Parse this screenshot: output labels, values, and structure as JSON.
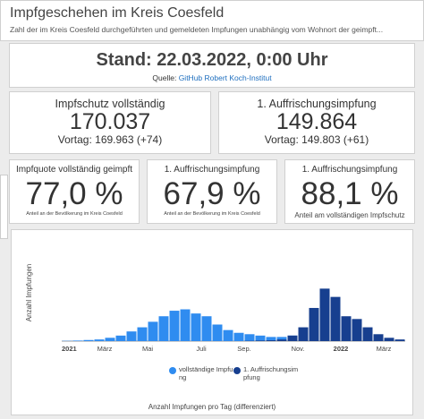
{
  "header": {
    "title": "Impfgeschehen im Kreis Coesfeld",
    "subtitle": "Zahl der im Kreis Coesfeld durchgeführten und gemeldeten Impfungen unabhängig vom Wohnort der geimpft..."
  },
  "stand": {
    "text": "Stand: 22.03.2022, 0:00 Uhr",
    "source_label": "Quelle:",
    "source_link": "GitHub Robert Koch-Institut"
  },
  "cards": [
    {
      "label": "Impfschutz vollständig",
      "value": "170.037",
      "previous": "Vortag: 169.963 (+74)"
    },
    {
      "label": "1. Auffrischungsimpfung",
      "value": "149.864",
      "previous": "Vortag: 149.803 (+61)"
    }
  ],
  "quotas": [
    {
      "label": "Impfquote vollständig geimpft",
      "value": "77,0 %",
      "note": "Anteil an der Bevölkerung im Kreis Coesfeld"
    },
    {
      "label": "1. Auffrischungsimpfung",
      "value": "67,9 %",
      "note": "Anteil an der Bevölkerung im Kreis Coesfeld"
    },
    {
      "label": "1. Auffrischungsimpfung",
      "value": "88,1 %",
      "note": "Anteil am vollständigen Impfschutz"
    }
  ],
  "chart_data": {
    "type": "bar",
    "y_label": "Anzahl Impfungen",
    "caption": "Anzahl Impfungen pro Tag (differenziert)",
    "ylim": [
      0,
      3500
    ],
    "categories": [
      "2021",
      null,
      null,
      null,
      "März",
      null,
      null,
      null,
      "Mai",
      null,
      null,
      null,
      null,
      "Juli",
      null,
      null,
      null,
      "Sep.",
      null,
      null,
      null,
      null,
      "Nov.",
      null,
      null,
      null,
      "2022",
      null,
      null,
      null,
      "März",
      null
    ],
    "series": [
      {
        "name": "vollständige Impfung",
        "color": "#2f8cf0",
        "values": [
          10,
          20,
          40,
          60,
          120,
          200,
          350,
          500,
          700,
          900,
          1100,
          1150,
          1000,
          900,
          600,
          400,
          300,
          250,
          200,
          150,
          150,
          200,
          300,
          350,
          250,
          150,
          80,
          60,
          40,
          30,
          20,
          20
        ]
      },
      {
        "name": "1. Auffrischungsimpfung",
        "color": "#173f8f",
        "values": [
          0,
          0,
          0,
          0,
          0,
          0,
          0,
          0,
          0,
          0,
          0,
          0,
          0,
          0,
          0,
          0,
          0,
          10,
          20,
          30,
          60,
          200,
          500,
          1200,
          1900,
          1600,
          900,
          800,
          500,
          250,
          120,
          60
        ]
      }
    ]
  }
}
